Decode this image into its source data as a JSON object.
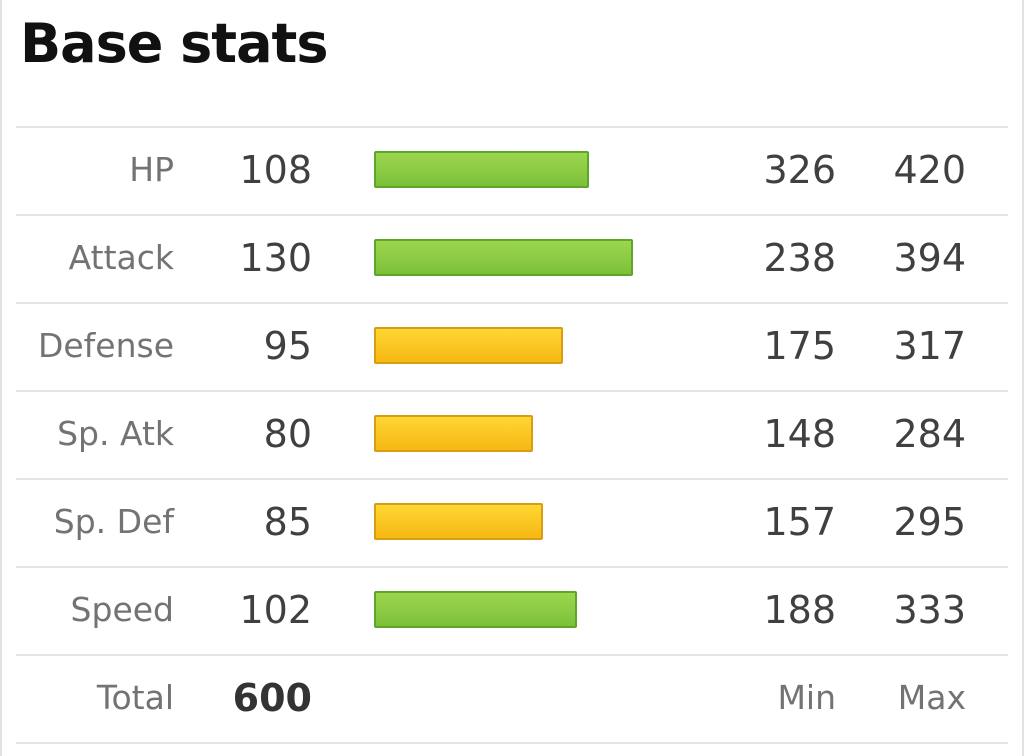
{
  "title": "Base stats",
  "stats": [
    {
      "label": "HP",
      "value": "108",
      "fill": 0.831,
      "tier": "good",
      "min": "326",
      "max": "420"
    },
    {
      "label": "Attack",
      "value": "130",
      "fill": 1.0,
      "tier": "good",
      "min": "238",
      "max": "394"
    },
    {
      "label": "Defense",
      "value": "95",
      "fill": 0.731,
      "tier": "mid",
      "min": "175",
      "max": "317"
    },
    {
      "label": "Sp. Atk",
      "value": "80",
      "fill": 0.615,
      "tier": "mid",
      "min": "148",
      "max": "284"
    },
    {
      "label": "Sp. Def",
      "value": "85",
      "fill": 0.654,
      "tier": "mid",
      "min": "157",
      "max": "295"
    },
    {
      "label": "Speed",
      "value": "102",
      "fill": 0.785,
      "tier": "good",
      "min": "188",
      "max": "333"
    }
  ],
  "total": {
    "label": "Total",
    "value": "600",
    "min_label": "Min",
    "max_label": "Max"
  },
  "colors": {
    "good": "#7cc13a",
    "mid": "#f5b814"
  }
}
